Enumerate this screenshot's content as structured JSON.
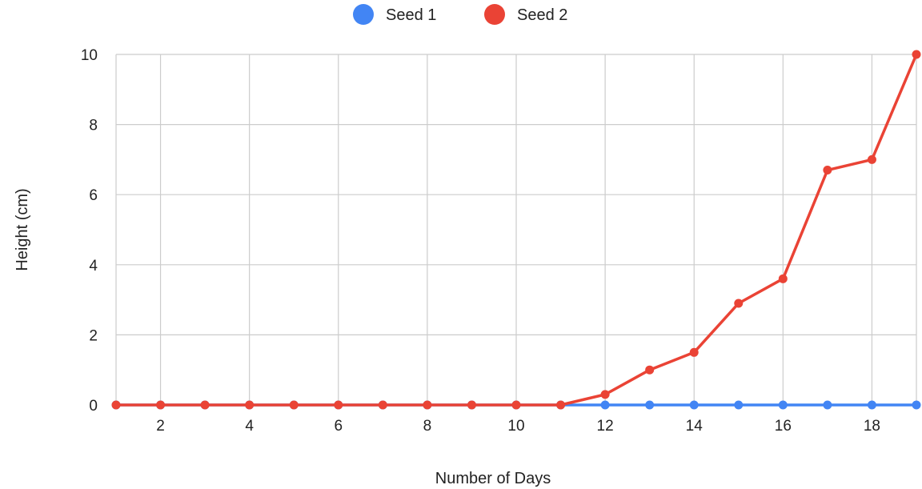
{
  "chart_data": {
    "type": "line",
    "xlabel": "Number of Days",
    "ylabel": "Height (cm)",
    "xlim": [
      1,
      19
    ],
    "ylim": [
      0,
      10
    ],
    "x_ticks": [
      2,
      4,
      6,
      8,
      10,
      12,
      14,
      16,
      18
    ],
    "y_ticks": [
      0,
      2,
      4,
      6,
      8,
      10
    ],
    "grid": true,
    "legend_position": "top",
    "x": [
      1,
      2,
      3,
      4,
      5,
      6,
      7,
      8,
      9,
      10,
      11,
      12,
      13,
      14,
      15,
      16,
      17,
      18,
      19
    ],
    "series": [
      {
        "name": "Seed 1",
        "color": "#4285F4",
        "values": [
          0,
          0,
          0,
          0,
          0,
          0,
          0,
          0,
          0,
          0,
          0,
          0,
          0,
          0,
          0,
          0,
          0,
          0,
          0
        ]
      },
      {
        "name": "Seed 2",
        "color": "#EA4335",
        "values": [
          0,
          0,
          0,
          0,
          0,
          0,
          0,
          0,
          0,
          0,
          0,
          0.3,
          1,
          1.5,
          2.9,
          3.6,
          6.7,
          7,
          10
        ]
      }
    ]
  }
}
